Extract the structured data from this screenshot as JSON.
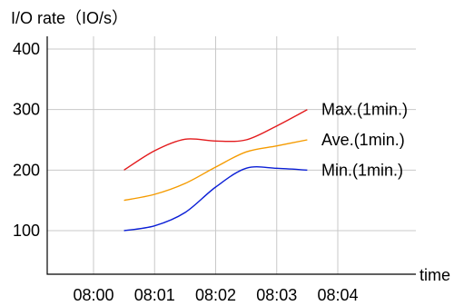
{
  "chart_data": {
    "type": "line",
    "ylabel": "I/O rate（IO/s）",
    "xlabel": "time",
    "ylim": [
      0,
      420
    ],
    "yticks": [
      100,
      200,
      300,
      400
    ],
    "xticks": [
      "08:00",
      "08:01",
      "08:02",
      "08:03",
      "08:04"
    ],
    "x": [
      "08:00:30",
      "08:01:00",
      "08:01:30",
      "08:02:00",
      "08:02:30",
      "08:03:00",
      "08:03:30"
    ],
    "grid": true,
    "legend": "inline-right",
    "series": [
      {
        "name": "Max.(1min.)",
        "color": "#e31a1c",
        "values": [
          200,
          232,
          251,
          248,
          250,
          273,
          300
        ]
      },
      {
        "name": "Ave.(1min.)",
        "color": "#f59b00",
        "values": [
          150,
          160,
          178,
          205,
          230,
          240,
          250
        ]
      },
      {
        "name": "Min.(1min.)",
        "color": "#0b1fd6",
        "values": [
          100,
          108,
          130,
          172,
          203,
          203,
          200
        ]
      }
    ]
  }
}
